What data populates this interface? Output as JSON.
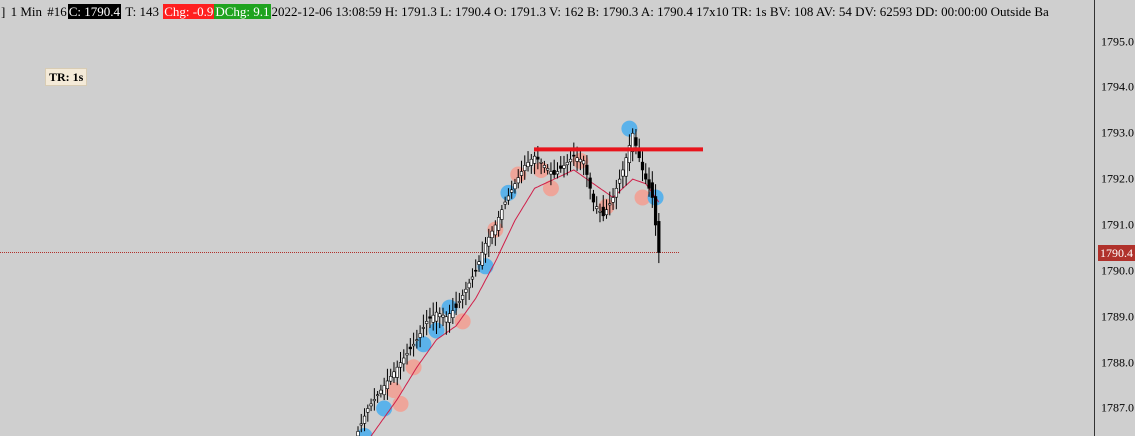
{
  "status_bar": {
    "symbol_fragment": "]",
    "timeframe": "1 Min",
    "bar_number": "#16",
    "close": "C: 1790.4",
    "ticks": "T: 143",
    "change": "Chg: -0.9",
    "dchange": "DChg: 9.1",
    "details": "2022-12-06 13:08:59 H: 1791.3 L: 1790.4 O: 1791.3 V: 162 B: 1790.3 A: 1790.4 17x10 TR: 1s BV: 108 AV: 54 DV: 62593 DD: 00:00:00 Outside Ba"
  },
  "tr_label": "TR: 1s",
  "current_price_label": "1790.4",
  "colors": {
    "background": "#cfcfcf",
    "candle": "#000000",
    "moving_average": "#d0204a",
    "resistance_line": "#e8141c",
    "current_price_line": "#b0312b",
    "marker_blue": "#5bb2ea",
    "marker_pink": "#eea59a"
  },
  "chart_data": {
    "type": "candlestick",
    "ylim": [
      1786.4,
      1795.6
    ],
    "y_ticks": [
      "1795.0",
      "1794.0",
      "1793.0",
      "1792.0",
      "1791.0",
      "1790.0",
      "1789.0",
      "1788.0",
      "1787.0"
    ],
    "current_price": 1790.4,
    "resistance_level": 1792.65,
    "close_path": [
      [
        0,
        1786.5
      ],
      [
        3,
        1787.0
      ],
      [
        6,
        1787.3
      ],
      [
        9,
        1787.6
      ],
      [
        12,
        1787.9
      ],
      [
        15,
        1788.2
      ],
      [
        18,
        1788.5
      ],
      [
        21,
        1788.9
      ],
      [
        24,
        1789.1
      ],
      [
        27,
        1789.0
      ],
      [
        30,
        1789.2
      ],
      [
        33,
        1789.6
      ],
      [
        36,
        1790.0
      ],
      [
        39,
        1790.6
      ],
      [
        42,
        1791.0
      ],
      [
        45,
        1791.5
      ],
      [
        48,
        1791.9
      ],
      [
        51,
        1792.3
      ],
      [
        54,
        1792.5
      ],
      [
        57,
        1792.3
      ],
      [
        60,
        1792.1
      ],
      [
        63,
        1792.3
      ],
      [
        66,
        1792.5
      ],
      [
        69,
        1792.4
      ],
      [
        72,
        1791.5
      ],
      [
        75,
        1791.2
      ],
      [
        78,
        1791.6
      ],
      [
        81,
        1792.2
      ],
      [
        84,
        1793.0
      ],
      [
        87,
        1792.2
      ],
      [
        90,
        1791.6
      ],
      [
        92,
        1790.4
      ]
    ],
    "ma_path": [
      [
        0,
        1786.0
      ],
      [
        6,
        1786.6
      ],
      [
        12,
        1787.2
      ],
      [
        18,
        1787.9
      ],
      [
        24,
        1788.5
      ],
      [
        30,
        1788.8
      ],
      [
        36,
        1789.4
      ],
      [
        42,
        1790.2
      ],
      [
        48,
        1791.1
      ],
      [
        54,
        1791.8
      ],
      [
        60,
        1792.0
      ],
      [
        66,
        1792.2
      ],
      [
        72,
        1791.9
      ],
      [
        78,
        1791.6
      ],
      [
        84,
        1792.0
      ],
      [
        88,
        1791.9
      ],
      [
        92,
        1791.5
      ]
    ],
    "markers": [
      {
        "x": 2,
        "y": 1786.4,
        "color": "blue"
      },
      {
        "x": 8,
        "y": 1787.0,
        "color": "blue"
      },
      {
        "x": 11,
        "y": 1787.4,
        "color": "pink"
      },
      {
        "x": 13,
        "y": 1787.1,
        "color": "pink"
      },
      {
        "x": 17,
        "y": 1787.9,
        "color": "pink"
      },
      {
        "x": 20,
        "y": 1788.4,
        "color": "blue"
      },
      {
        "x": 24,
        "y": 1788.7,
        "color": "blue"
      },
      {
        "x": 28,
        "y": 1789.2,
        "color": "blue"
      },
      {
        "x": 32,
        "y": 1788.9,
        "color": "pink"
      },
      {
        "x": 39,
        "y": 1790.1,
        "color": "blue"
      },
      {
        "x": 42,
        "y": 1790.9,
        "color": "pink"
      },
      {
        "x": 46,
        "y": 1791.7,
        "color": "blue"
      },
      {
        "x": 49,
        "y": 1792.1,
        "color": "pink"
      },
      {
        "x": 56,
        "y": 1792.2,
        "color": "pink"
      },
      {
        "x": 59,
        "y": 1791.8,
        "color": "pink"
      },
      {
        "x": 68,
        "y": 1792.4,
        "color": "pink"
      },
      {
        "x": 76,
        "y": 1791.4,
        "color": "pink"
      },
      {
        "x": 83,
        "y": 1793.1,
        "color": "blue"
      },
      {
        "x": 87,
        "y": 1791.6,
        "color": "pink"
      },
      {
        "x": 91,
        "y": 1791.6,
        "color": "blue"
      }
    ]
  }
}
